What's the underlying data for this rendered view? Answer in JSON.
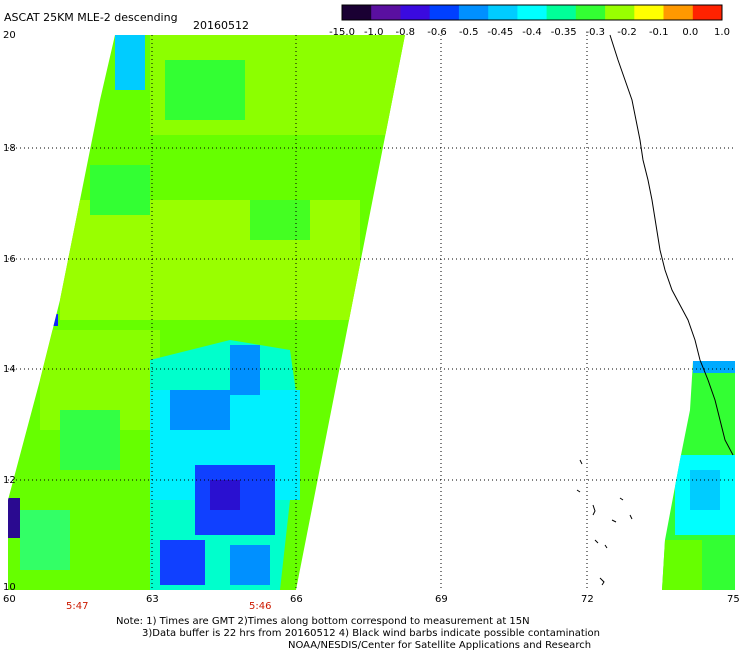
{
  "header": {
    "title": "ASCAT 25KM MLE-2 descending",
    "date": "20160512"
  },
  "colorbar": {
    "labels": [
      "-15.0",
      "-1.0",
      "-0.8",
      "-0.6",
      "-0.5",
      "-0.45",
      "-0.4",
      "-0.35",
      "-0.3",
      "-0.2",
      "-0.1",
      "0.0",
      "1.0"
    ],
    "colors": [
      "#1a0033",
      "#5a0fa0",
      "#3a0adf",
      "#0040ff",
      "#0090ff",
      "#00ccff",
      "#00ffff",
      "#00ff99",
      "#33ff33",
      "#99ff00",
      "#ffff00",
      "#ff9900",
      "#ff2200"
    ]
  },
  "axes": {
    "lat_labels": [
      "20",
      "18",
      "16",
      "14",
      "12",
      "10"
    ],
    "lon_labels": [
      "60",
      "63",
      "66",
      "69",
      "72",
      "75"
    ],
    "lat_range": [
      10,
      20
    ],
    "lon_range": [
      60,
      75
    ]
  },
  "times": [
    "5:47",
    "5:46"
  ],
  "notes": [
    "Note: 1) Times are GMT 2)Times along bottom correspond to measurement at 15N",
    "3)Data buffer is 22 hrs from 20160512 4) Black wind barbs indicate possible contamination",
    "NOAA/NESDIS/Center for Satellite Applications and Research"
  ]
}
